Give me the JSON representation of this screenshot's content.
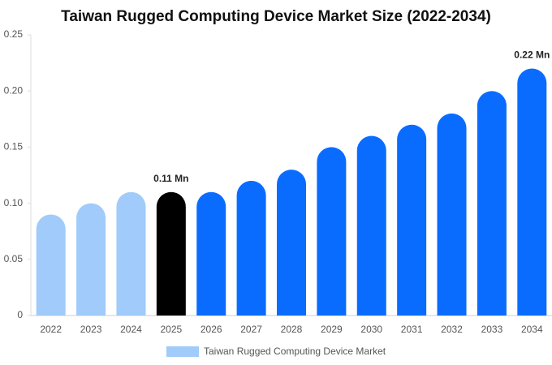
{
  "chart_data": {
    "type": "bar",
    "title": "Taiwan Rugged Computing Device Market Size (2022-2034)",
    "categories": [
      "2022",
      "2023",
      "2024",
      "2025",
      "2026",
      "2027",
      "2028",
      "2029",
      "2030",
      "2031",
      "2032",
      "2033",
      "2034"
    ],
    "series": [
      {
        "name": "Taiwan Rugged Computing Device Market",
        "color": "#a0cbfa",
        "colors": [
          "#a0cbfa",
          "#a0cbfa",
          "#a0cbfa",
          "#000000",
          "#0a6cff",
          "#0a6cff",
          "#0a6cff",
          "#0a6cff",
          "#0a6cff",
          "#0a6cff",
          "#0a6cff",
          "#0a6cff",
          "#0a6cff"
        ],
        "values": [
          0.09,
          0.1,
          0.11,
          0.11,
          0.11,
          0.12,
          0.13,
          0.15,
          0.16,
          0.17,
          0.18,
          0.2,
          0.22
        ],
        "value_labels": [
          null,
          null,
          null,
          "0.11 Mn",
          null,
          null,
          null,
          null,
          null,
          null,
          null,
          null,
          "0.22 Mn"
        ]
      }
    ],
    "ylim": [
      0,
      0.25
    ],
    "yticks": [
      0,
      0.05,
      {
        "value": 0.1,
        "label": "0.10"
      },
      0.15,
      {
        "value": 0.2,
        "label": "0.20"
      },
      0.25
    ],
    "legend": "bottom"
  }
}
